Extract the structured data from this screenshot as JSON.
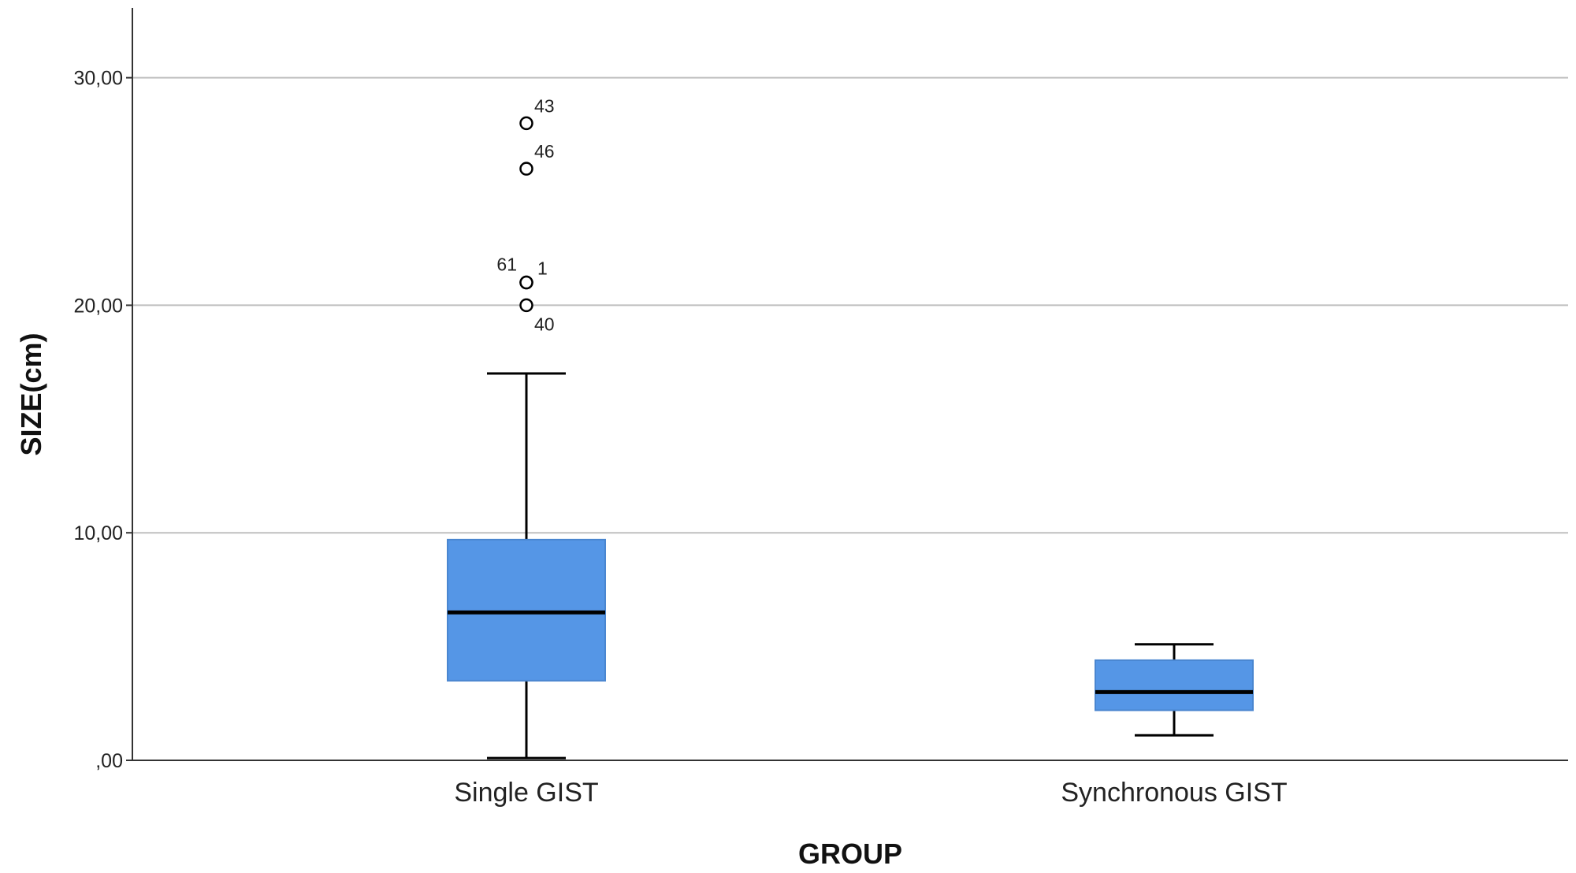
{
  "chart_data": {
    "type": "box",
    "xlabel": "GROUP",
    "ylabel": "SIZE(cm)",
    "ylim": [
      0,
      33
    ],
    "yticks": [
      0,
      10,
      20,
      30
    ],
    "ytick_labels": [
      ",00",
      "10,00",
      "20,00",
      "30,00"
    ],
    "grid": "horizontal",
    "colors": {
      "box_fill": "#5596e6",
      "box_stroke": "#4a86d0",
      "grid": "#bfbfbf",
      "axis": "#333333"
    },
    "categories": [
      "Single GIST",
      "Synchronous GIST"
    ],
    "boxes": [
      {
        "category": "Single GIST",
        "min": 0.1,
        "q1": 3.5,
        "median": 6.5,
        "q3": 9.7,
        "max": 17.0,
        "outliers": [
          {
            "value": 28.0,
            "label": "43",
            "label_side": "right-above"
          },
          {
            "value": 26.0,
            "label": "46",
            "label_side": "right-above"
          },
          {
            "value": 21.0,
            "label": "61",
            "label_side": "left-above"
          },
          {
            "value": 21.0,
            "label": "1",
            "label_side": "right"
          },
          {
            "value": 20.0,
            "label": "40",
            "label_side": "right-below"
          }
        ]
      },
      {
        "category": "Synchronous GIST",
        "min": 1.1,
        "q1": 2.2,
        "median": 3.0,
        "q3": 4.4,
        "max": 5.1,
        "outliers": []
      }
    ]
  }
}
